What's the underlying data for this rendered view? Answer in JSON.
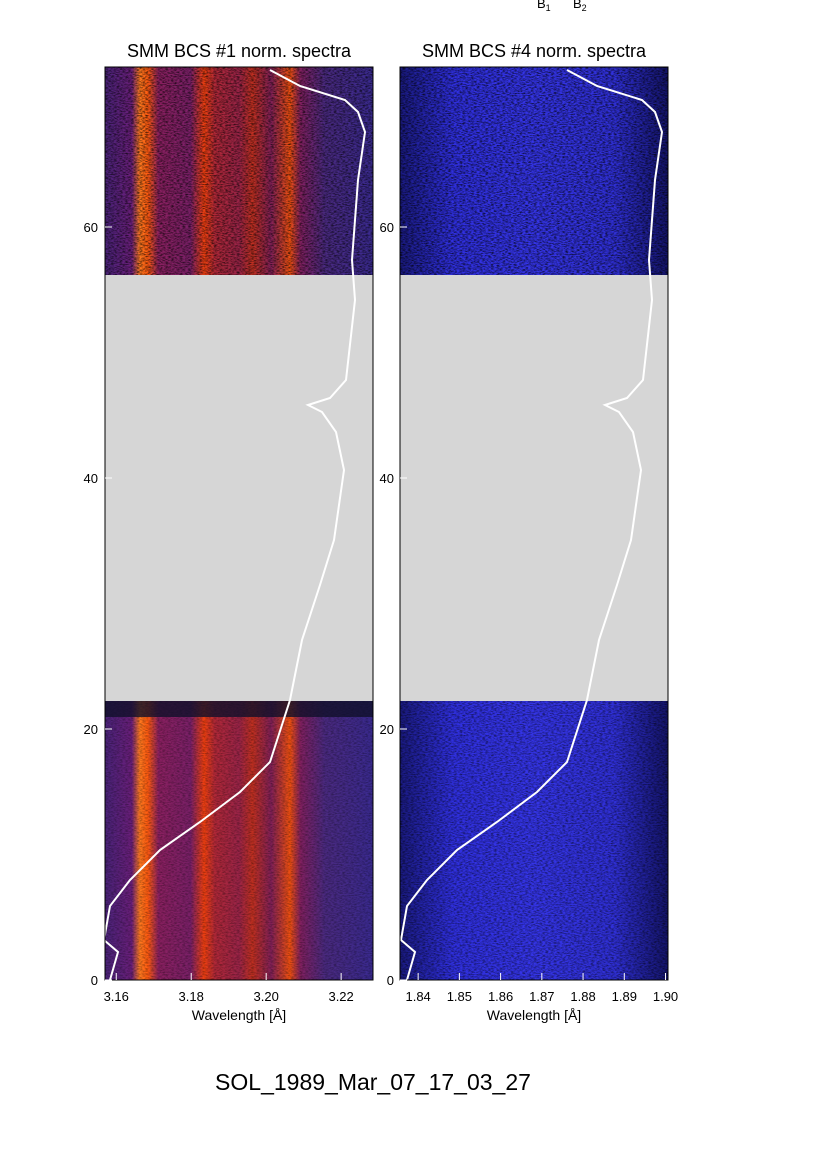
{
  "labels": [
    {
      "base": "B",
      "sub": "1"
    },
    {
      "base": "B",
      "sub": "2"
    }
  ],
  "footer": "SOL_1989_Mar_07_17_03_27",
  "chart_data": [
    {
      "type": "heatmap",
      "title": "SMM BCS #1 norm. spectra",
      "xlabel": "Wavelength [Å]",
      "xlim": [
        3.157,
        3.2285
      ],
      "xticks": [
        3.16,
        3.18,
        {
          "value": 3.2,
          "label": "3.20"
        },
        3.22
      ],
      "ylim": [
        0,
        72.75
      ],
      "yticks": [
        0,
        20,
        40,
        60
      ]
    },
    {
      "type": "heatmap",
      "title": "SMM BCS #4 norm. spectra",
      "xlabel": "Wavelength [Å]",
      "xlim": [
        1.8356,
        1.9006
      ],
      "xticks": [
        1.84,
        1.85,
        1.86,
        1.87,
        1.88,
        1.89,
        {
          "value": 1.9,
          "label": "1.90"
        }
      ],
      "ylim": [
        0,
        72.75
      ],
      "yticks": [
        0,
        20,
        40,
        60
      ]
    }
  ]
}
